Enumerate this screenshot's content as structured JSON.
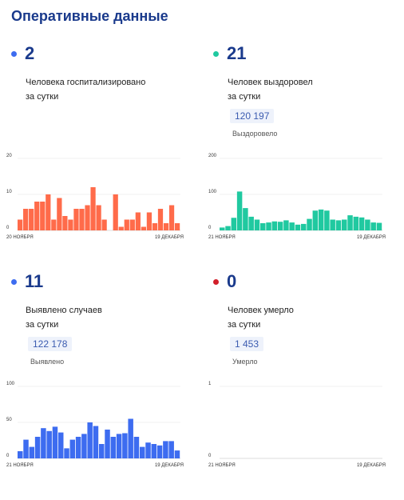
{
  "page_title": "Оперативные данные",
  "colors": {
    "title": "#1a3a8c",
    "hospitalized": "#ff6b4a",
    "recovered": "#20c9a0",
    "cases": "#3d6cf0",
    "deaths": "#d21f2a"
  },
  "panels": [
    {
      "value": "2",
      "line1": "Человека госпитализировано",
      "line2": "за сутки",
      "total": "",
      "total_label": ""
    },
    {
      "value": "21",
      "line1": "Человек выздоровел",
      "line2": "за сутки",
      "total": "120 197",
      "total_label": "Выздоровело"
    },
    {
      "value": "11",
      "line1": "Выявлено случаев",
      "line2": "за сутки",
      "total": "122 178",
      "total_label": "Выявлено"
    },
    {
      "value": "0",
      "line1": "Человек умерло",
      "line2": "за сутки",
      "total": "1 453",
      "total_label": "Умерло"
    }
  ],
  "chart_data": [
    {
      "type": "bar",
      "color": "#ff6b4a",
      "ylim": [
        0,
        20
      ],
      "yticks": [
        "0",
        "10",
        "20"
      ],
      "x_start": "20 НОЯБРЯ",
      "x_end": "19 ДЕКАБРЯ",
      "values": [
        3,
        6,
        6,
        8,
        8,
        10,
        3,
        9,
        4,
        3,
        6,
        6,
        7,
        12,
        7,
        3,
        0,
        10,
        1,
        3,
        3,
        5,
        1,
        5,
        2,
        6,
        2,
        7,
        2
      ]
    },
    {
      "type": "bar",
      "color": "#20c9a0",
      "ylim": [
        0,
        200
      ],
      "yticks": [
        "0",
        "100",
        "200"
      ],
      "x_start": "21 НОЯБРЯ",
      "x_end": "19 ДЕКАБРЯ",
      "values": [
        8,
        12,
        35,
        108,
        62,
        38,
        30,
        20,
        22,
        25,
        24,
        28,
        22,
        16,
        18,
        32,
        55,
        58,
        55,
        30,
        28,
        30,
        42,
        38,
        36,
        30,
        22,
        21
      ]
    },
    {
      "type": "bar",
      "color": "#3d6cf0",
      "ylim": [
        0,
        100
      ],
      "yticks": [
        "0",
        "50",
        "100"
      ],
      "x_start": "21 НОЯБРЯ",
      "x_end": "19 ДЕКАБРЯ",
      "values": [
        10,
        26,
        16,
        30,
        42,
        38,
        44,
        36,
        14,
        26,
        30,
        34,
        50,
        45,
        20,
        40,
        30,
        34,
        35,
        55,
        30,
        16,
        22,
        20,
        18,
        24,
        24,
        11
      ]
    },
    {
      "type": "bar",
      "color": "#d21f2a",
      "ylim": [
        0,
        1
      ],
      "yticks": [
        "0",
        "1"
      ],
      "x_start": "21 НОЯБРЯ",
      "x_end": "19 ДЕКАБРЯ",
      "values": [
        0,
        0,
        0,
        0,
        0,
        0,
        0,
        0,
        0,
        0,
        0,
        0,
        0,
        0,
        0,
        0,
        0,
        0,
        0,
        0,
        0,
        0,
        0,
        0,
        0,
        0,
        0,
        0
      ]
    }
  ]
}
